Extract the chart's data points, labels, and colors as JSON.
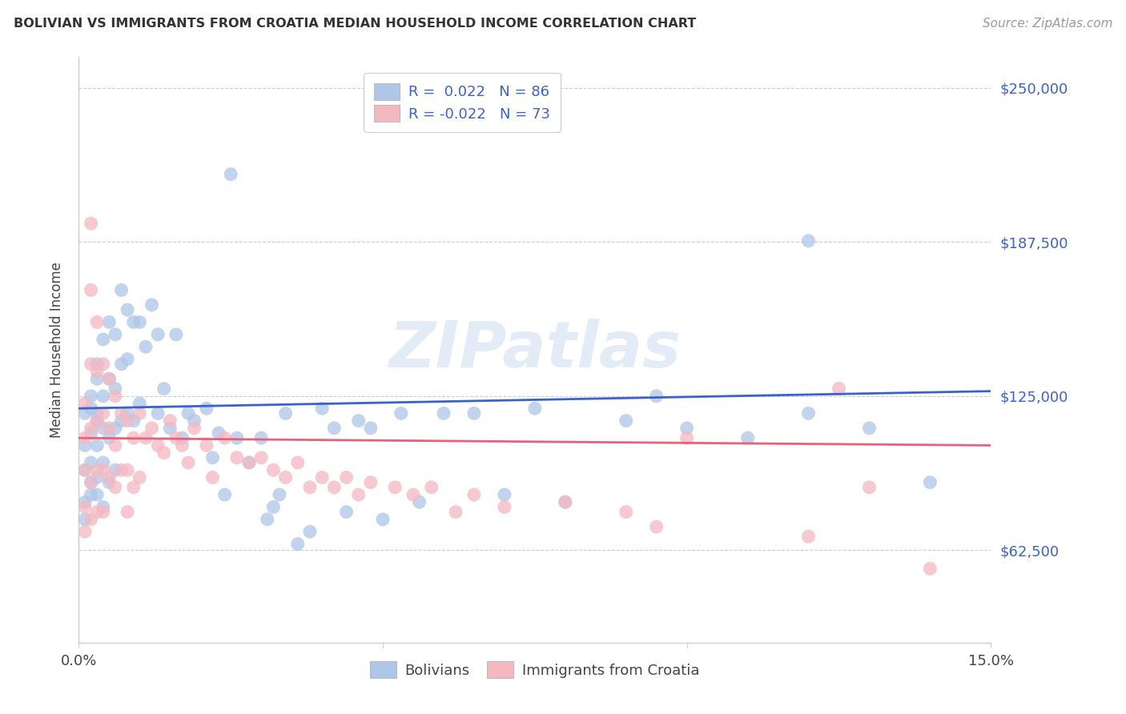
{
  "title": "BOLIVIAN VS IMMIGRANTS FROM CROATIA MEDIAN HOUSEHOLD INCOME CORRELATION CHART",
  "source": "Source: ZipAtlas.com",
  "ylabel": "Median Household Income",
  "xlim": [
    0,
    0.15
  ],
  "ylim": [
    25000,
    262500
  ],
  "yticks": [
    62500,
    125000,
    187500,
    250000
  ],
  "ytick_labels": [
    "$62,500",
    "$125,000",
    "$187,500",
    "$250,000"
  ],
  "xticks": [
    0.0,
    0.05,
    0.1,
    0.15
  ],
  "xtick_labels": [
    "0.0%",
    "",
    "",
    "15.0%"
  ],
  "color_blue": "#aec6e8",
  "color_pink": "#f4b8c1",
  "line_blue": "#3a62cd",
  "line_pink": "#e8607a",
  "watermark": "ZIPatlas",
  "blue_line_y0": 120000,
  "blue_line_y1": 127000,
  "pink_line_y0": 108000,
  "pink_line_y1": 105000,
  "bolivians_x": [
    0.001,
    0.001,
    0.001,
    0.001,
    0.001,
    0.002,
    0.002,
    0.002,
    0.002,
    0.002,
    0.002,
    0.003,
    0.003,
    0.003,
    0.003,
    0.003,
    0.003,
    0.003,
    0.004,
    0.004,
    0.004,
    0.004,
    0.004,
    0.005,
    0.005,
    0.005,
    0.005,
    0.006,
    0.006,
    0.006,
    0.006,
    0.007,
    0.007,
    0.007,
    0.008,
    0.008,
    0.008,
    0.009,
    0.009,
    0.01,
    0.01,
    0.011,
    0.012,
    0.013,
    0.013,
    0.014,
    0.015,
    0.016,
    0.017,
    0.018,
    0.019,
    0.021,
    0.022,
    0.023,
    0.024,
    0.025,
    0.026,
    0.028,
    0.03,
    0.031,
    0.032,
    0.033,
    0.034,
    0.036,
    0.038,
    0.04,
    0.042,
    0.044,
    0.046,
    0.048,
    0.05,
    0.053,
    0.056,
    0.06,
    0.065,
    0.07,
    0.075,
    0.08,
    0.09,
    0.095,
    0.1,
    0.11,
    0.12,
    0.13,
    0.14,
    0.12
  ],
  "bolivians_y": [
    105000,
    118000,
    95000,
    82000,
    75000,
    125000,
    110000,
    98000,
    85000,
    120000,
    90000,
    132000,
    118000,
    105000,
    92000,
    138000,
    115000,
    85000,
    148000,
    125000,
    112000,
    98000,
    80000,
    155000,
    132000,
    108000,
    90000,
    150000,
    128000,
    112000,
    95000,
    168000,
    138000,
    115000,
    160000,
    140000,
    118000,
    155000,
    115000,
    155000,
    122000,
    145000,
    162000,
    150000,
    118000,
    128000,
    112000,
    150000,
    108000,
    118000,
    115000,
    120000,
    100000,
    110000,
    85000,
    215000,
    108000,
    98000,
    108000,
    75000,
    80000,
    85000,
    118000,
    65000,
    70000,
    120000,
    112000,
    78000,
    115000,
    112000,
    75000,
    118000,
    82000,
    118000,
    118000,
    85000,
    120000,
    82000,
    115000,
    125000,
    112000,
    108000,
    118000,
    112000,
    90000,
    188000
  ],
  "croatia_x": [
    0.001,
    0.001,
    0.001,
    0.001,
    0.001,
    0.002,
    0.002,
    0.002,
    0.002,
    0.002,
    0.002,
    0.003,
    0.003,
    0.003,
    0.003,
    0.003,
    0.004,
    0.004,
    0.004,
    0.004,
    0.005,
    0.005,
    0.005,
    0.006,
    0.006,
    0.006,
    0.007,
    0.007,
    0.008,
    0.008,
    0.008,
    0.009,
    0.009,
    0.01,
    0.01,
    0.011,
    0.012,
    0.013,
    0.014,
    0.015,
    0.016,
    0.017,
    0.018,
    0.019,
    0.021,
    0.022,
    0.024,
    0.026,
    0.028,
    0.03,
    0.032,
    0.034,
    0.036,
    0.038,
    0.04,
    0.042,
    0.044,
    0.046,
    0.048,
    0.052,
    0.055,
    0.058,
    0.062,
    0.065,
    0.07,
    0.08,
    0.09,
    0.095,
    0.1,
    0.12,
    0.125,
    0.13,
    0.14
  ],
  "croatia_y": [
    108000,
    122000,
    95000,
    80000,
    70000,
    195000,
    168000,
    138000,
    112000,
    90000,
    75000,
    155000,
    135000,
    115000,
    95000,
    78000,
    138000,
    118000,
    95000,
    78000,
    132000,
    112000,
    92000,
    125000,
    105000,
    88000,
    118000,
    95000,
    115000,
    95000,
    78000,
    108000,
    88000,
    118000,
    92000,
    108000,
    112000,
    105000,
    102000,
    115000,
    108000,
    105000,
    98000,
    112000,
    105000,
    92000,
    108000,
    100000,
    98000,
    100000,
    95000,
    92000,
    98000,
    88000,
    92000,
    88000,
    92000,
    85000,
    90000,
    88000,
    85000,
    88000,
    78000,
    85000,
    80000,
    82000,
    78000,
    72000,
    108000,
    68000,
    128000,
    88000,
    55000
  ]
}
